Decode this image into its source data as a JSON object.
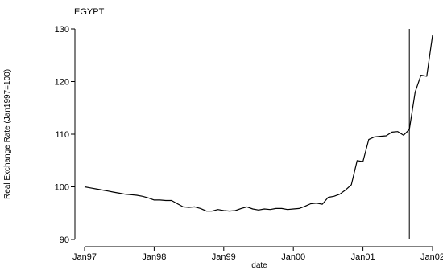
{
  "chart_data": {
    "type": "line",
    "title": "EGYPT",
    "xlabel": "date",
    "ylabel": "Real Exchange Rate (Jan1997=100)",
    "x_ticks": [
      "Jan97",
      "Jan98",
      "Jan99",
      "Jan00",
      "Jan01",
      "Jan02"
    ],
    "y_ticks": [
      90,
      100,
      110,
      120,
      130
    ],
    "xlim": [
      "1997-01",
      "2002-01"
    ],
    "ylim": [
      90,
      130
    ],
    "grid": false,
    "vertical_line": {
      "x": "2001-09",
      "y_range": [
        90,
        130
      ]
    },
    "series": [
      {
        "x": [
          "1997-01",
          "1997-02",
          "1997-03",
          "1997-04",
          "1997-05",
          "1997-06",
          "1997-07",
          "1997-08",
          "1997-09",
          "1997-10",
          "1997-11",
          "1997-12",
          "1998-01",
          "1998-02",
          "1998-03",
          "1998-04",
          "1998-05",
          "1998-06",
          "1998-07",
          "1998-08",
          "1998-09",
          "1998-10",
          "1998-11",
          "1998-12",
          "1999-01",
          "1999-02",
          "1999-03",
          "1999-04",
          "1999-05",
          "1999-06",
          "1999-07",
          "1999-08",
          "1999-09",
          "1999-10",
          "1999-11",
          "1999-12",
          "2000-01",
          "2000-02",
          "2000-03",
          "2000-04",
          "2000-05",
          "2000-06",
          "2000-07",
          "2000-08",
          "2000-09",
          "2000-10",
          "2000-11",
          "2000-12",
          "2001-01",
          "2001-02",
          "2001-03",
          "2001-04",
          "2001-05",
          "2001-06",
          "2001-07",
          "2001-08",
          "2001-09",
          "2001-10",
          "2001-11",
          "2001-12",
          "2002-01"
        ],
        "y": [
          100.0,
          99.8,
          99.6,
          99.4,
          99.2,
          99.0,
          98.8,
          98.6,
          98.5,
          98.4,
          98.2,
          97.9,
          97.5,
          97.5,
          97.4,
          97.4,
          96.8,
          96.2,
          96.1,
          96.2,
          95.9,
          95.4,
          95.4,
          95.7,
          95.5,
          95.4,
          95.5,
          95.9,
          96.2,
          95.8,
          95.6,
          95.8,
          95.7,
          95.9,
          95.9,
          95.7,
          95.8,
          95.9,
          96.3,
          96.8,
          96.9,
          96.7,
          98.0,
          98.2,
          98.6,
          99.4,
          100.4,
          105.0,
          104.8,
          109.0,
          109.5,
          109.6,
          109.7,
          110.4,
          110.5,
          109.8,
          110.9,
          118.0,
          121.2,
          121.0,
          128.8
        ]
      }
    ]
  }
}
